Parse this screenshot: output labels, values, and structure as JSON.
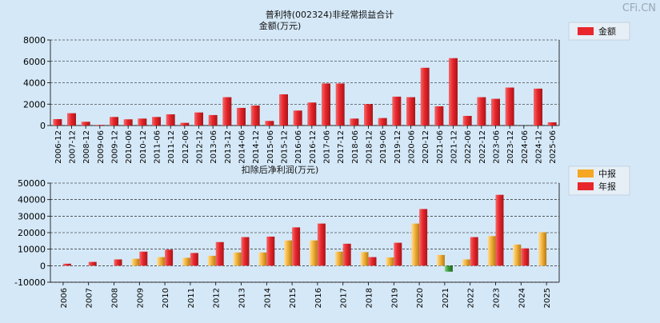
{
  "watermark": "CFi.CN",
  "chart_data": [
    {
      "type": "bar",
      "title": "普利特(002324)非经常损益合计",
      "ylabel": "金额(万元)",
      "legend": [
        "金额"
      ],
      "legend_position": "top-right",
      "colors": {
        "金额": "#e8262b"
      },
      "ylim": [
        0,
        8000
      ],
      "yticks": [
        0,
        2000,
        4000,
        6000,
        8000
      ],
      "categories": [
        "2006-12",
        "2007-12",
        "2008-12",
        "2009-06",
        "2009-12",
        "2010-06",
        "2010-12",
        "2011-06",
        "2011-12",
        "2012-06",
        "2012-12",
        "2013-06",
        "2013-12",
        "2014-06",
        "2014-12",
        "2015-06",
        "2015-12",
        "2016-06",
        "2016-12",
        "2017-06",
        "2017-12",
        "2018-06",
        "2018-12",
        "2019-06",
        "2019-12",
        "2020-06",
        "2020-12",
        "2021-06",
        "2021-12",
        "2022-06",
        "2022-12",
        "2023-06",
        "2023-12",
        "2024-06",
        "2024-12",
        "2025-06"
      ],
      "values": [
        600,
        1150,
        350,
        60,
        800,
        580,
        650,
        800,
        1050,
        250,
        1220,
        980,
        2650,
        1650,
        1870,
        430,
        2920,
        1400,
        2150,
        3930,
        3930,
        650,
        2000,
        700,
        2700,
        2650,
        5400,
        1800,
        6300,
        900,
        2650,
        2500,
        3550,
        0,
        3450,
        300
      ]
    },
    {
      "type": "bar",
      "title": "扣除后净利润(万元)",
      "legend": [
        "中报",
        "年报"
      ],
      "legend_position": "top-right",
      "colors": {
        "中报": "#f5a623",
        "年报": "#e8262b",
        "negative": "#3a9a3a"
      },
      "ylim": [
        -10000,
        50000
      ],
      "yticks": [
        -10000,
        0,
        10000,
        20000,
        30000,
        40000,
        50000
      ],
      "categories": [
        "2006",
        "2007",
        "2008",
        "2009",
        "2010",
        "2011",
        "2012",
        "2013",
        "2014",
        "2015",
        "2016",
        "2017",
        "2018",
        "2019",
        "2020",
        "2021",
        "2022",
        "2023",
        "2024",
        "2025"
      ],
      "series": [
        {
          "name": "中报",
          "values": [
            null,
            null,
            null,
            4200,
            5200,
            4800,
            6000,
            8000,
            8000,
            15300,
            15300,
            8500,
            8200,
            5000,
            25500,
            6500,
            3800,
            17900,
            12800,
            20200
          ]
        },
        {
          "name": "年报",
          "values": [
            1200,
            2300,
            3800,
            8500,
            9700,
            7700,
            14300,
            17300,
            17600,
            23200,
            25500,
            13300,
            5200,
            13900,
            34300,
            -3600,
            17300,
            42900,
            10500,
            null
          ]
        }
      ]
    }
  ]
}
